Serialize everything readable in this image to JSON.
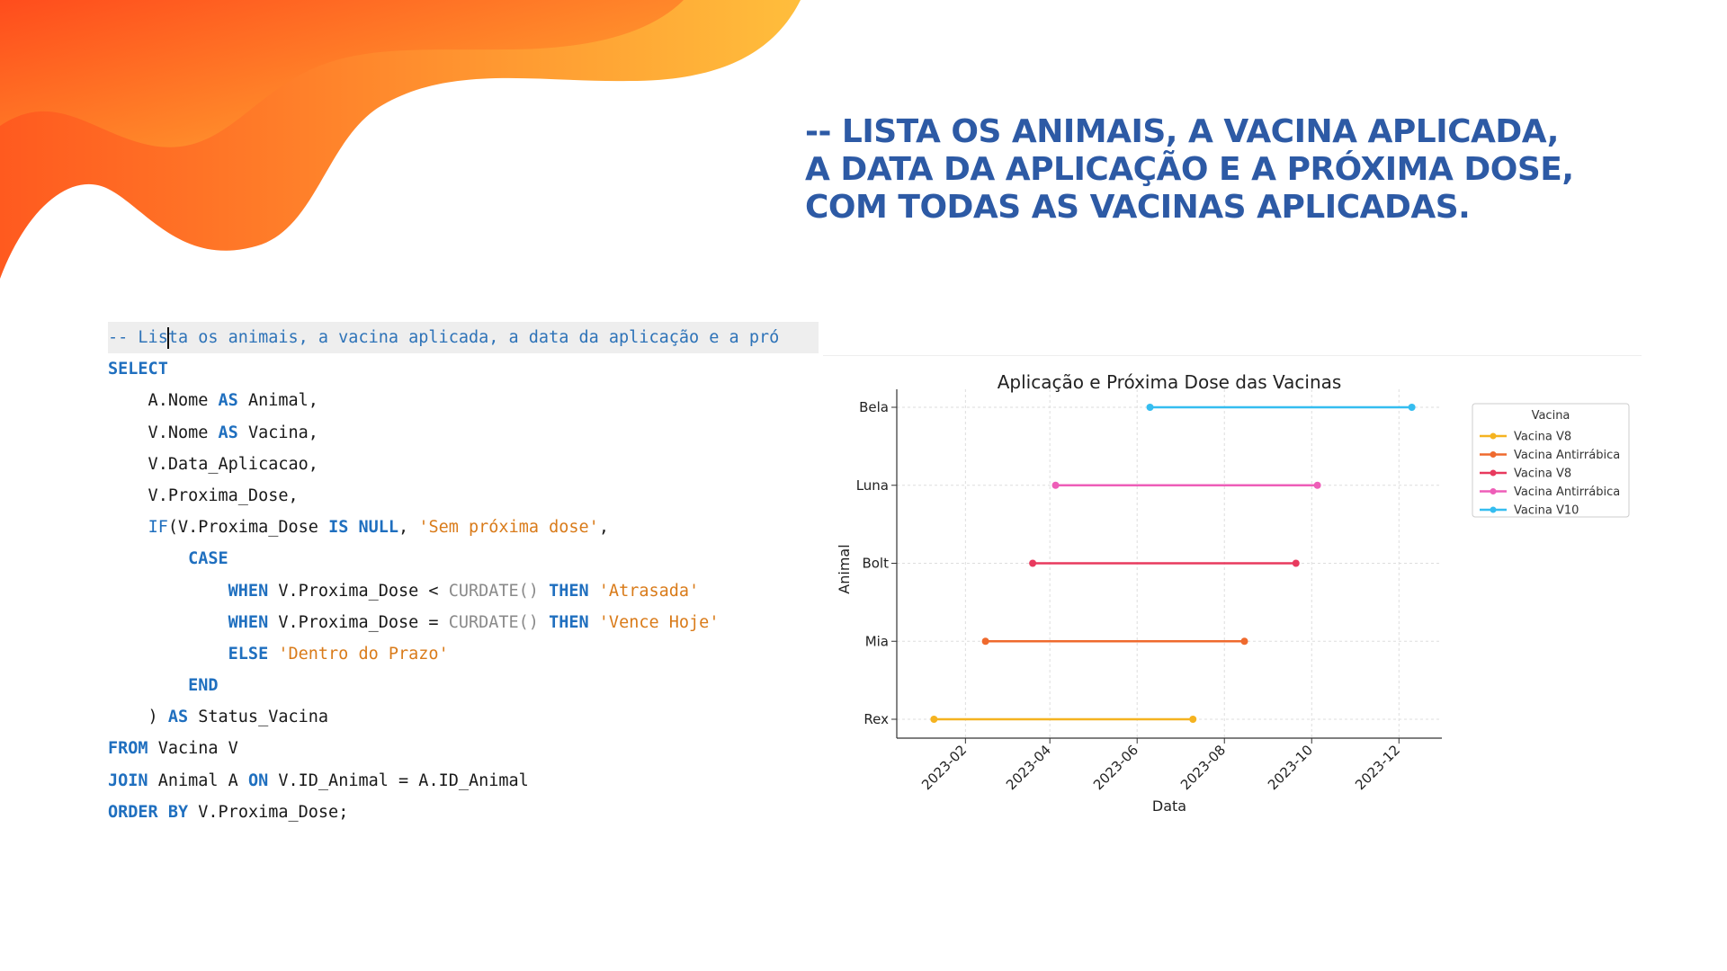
{
  "heading": {
    "line1": "-- LISTA OS ANIMAIS, A VACINA APLICADA,",
    "line2": "A DATA DA APLICAÇÃO E A PRÓXIMA DOSE,",
    "line3": "COM TODAS AS VACINAS APLICADAS."
  },
  "code": {
    "comment_a": "-- Lis",
    "comment_b": "ta os animais, a vacina aplicada, a data da aplicação e a pró",
    "l2": "SELECT",
    "l3_a": "    A.Nome ",
    "l3_kw": "AS",
    "l3_b": " Animal,",
    "l4_a": "    V.Nome ",
    "l4_kw": "AS",
    "l4_b": " Vacina,",
    "l5": "    V.Data_Aplicacao,",
    "l6": "    V.Proxima_Dose,",
    "l7_indent": "    ",
    "l7_fn": "IF",
    "l7_a": "(V.Proxima_Dose ",
    "l7_kw1": "IS",
    "l7_sp": " ",
    "l7_kw2": "NULL",
    "l7_b": ", ",
    "l7_str": "'Sem próxima dose'",
    "l7_c": ",",
    "l8_indent": "        ",
    "l8_kw": "CASE",
    "l9_indent": "            ",
    "l9_kw": "WHEN",
    "l9_a": " V.Proxima_Dose < ",
    "l9_fn": "CURDATE()",
    "l9_sp": " ",
    "l9_kw2": "THEN",
    "l9_sp2": " ",
    "l9_str": "'Atrasada'",
    "l10_indent": "            ",
    "l10_kw": "WHEN",
    "l10_a": " V.Proxima_Dose = ",
    "l10_fn": "CURDATE()",
    "l10_sp": " ",
    "l10_kw2": "THEN",
    "l10_sp2": " ",
    "l10_str": "'Vence Hoje'",
    "l11_indent": "            ",
    "l11_kw": "ELSE",
    "l11_sp": " ",
    "l11_str": "'Dentro do Prazo'",
    "l12_indent": "        ",
    "l12_kw": "END",
    "l13_a": "    ) ",
    "l13_kw": "AS",
    "l13_b": " Status_Vacina",
    "l14_kw": "FROM",
    "l14_a": " Vacina V",
    "l15_kw1": "JOIN",
    "l15_a": " Animal A ",
    "l15_kw2": "ON",
    "l15_b": " V.ID_Animal = A.ID_Animal",
    "l16_kw1": "ORDER",
    "l16_sp": " ",
    "l16_kw2": "BY",
    "l16_a": " V.Proxima_Dose;"
  },
  "chart_data": {
    "type": "line",
    "title": "Aplicação e Próxima Dose das Vacinas",
    "xlabel": "Data",
    "ylabel": "Animal",
    "categories": [
      "Rex",
      "Mia",
      "Bolt",
      "Luna",
      "Bela"
    ],
    "xlim": [
      "2022-12-15",
      "2023-12-31"
    ],
    "x_ticks": [
      "2023-02",
      "2023-04",
      "2023-06",
      "2023-08",
      "2023-10",
      "2023-12"
    ],
    "grid": true,
    "legend_title": "Vacina",
    "legend_position": "upper-right-outside",
    "series": [
      {
        "name": "Vacina V8",
        "animal": "Rex",
        "color": "#f5b320",
        "x": [
          "2023-01-10",
          "2023-07-10"
        ]
      },
      {
        "name": "Vacina Antirrábica",
        "animal": "Mia",
        "color": "#ef6a2e",
        "x": [
          "2023-02-15",
          "2023-08-15"
        ]
      },
      {
        "name": "Vacina V8",
        "animal": "Bolt",
        "color": "#e83a5e",
        "x": [
          "2023-03-20",
          "2023-09-20"
        ]
      },
      {
        "name": "Vacina Antirrábica",
        "animal": "Luna",
        "color": "#ee5eb8",
        "x": [
          "2023-04-05",
          "2023-10-05"
        ]
      },
      {
        "name": "Vacina V10",
        "animal": "Bela",
        "color": "#35bdf0",
        "x": [
          "2023-06-10",
          "2023-12-10"
        ]
      }
    ]
  }
}
